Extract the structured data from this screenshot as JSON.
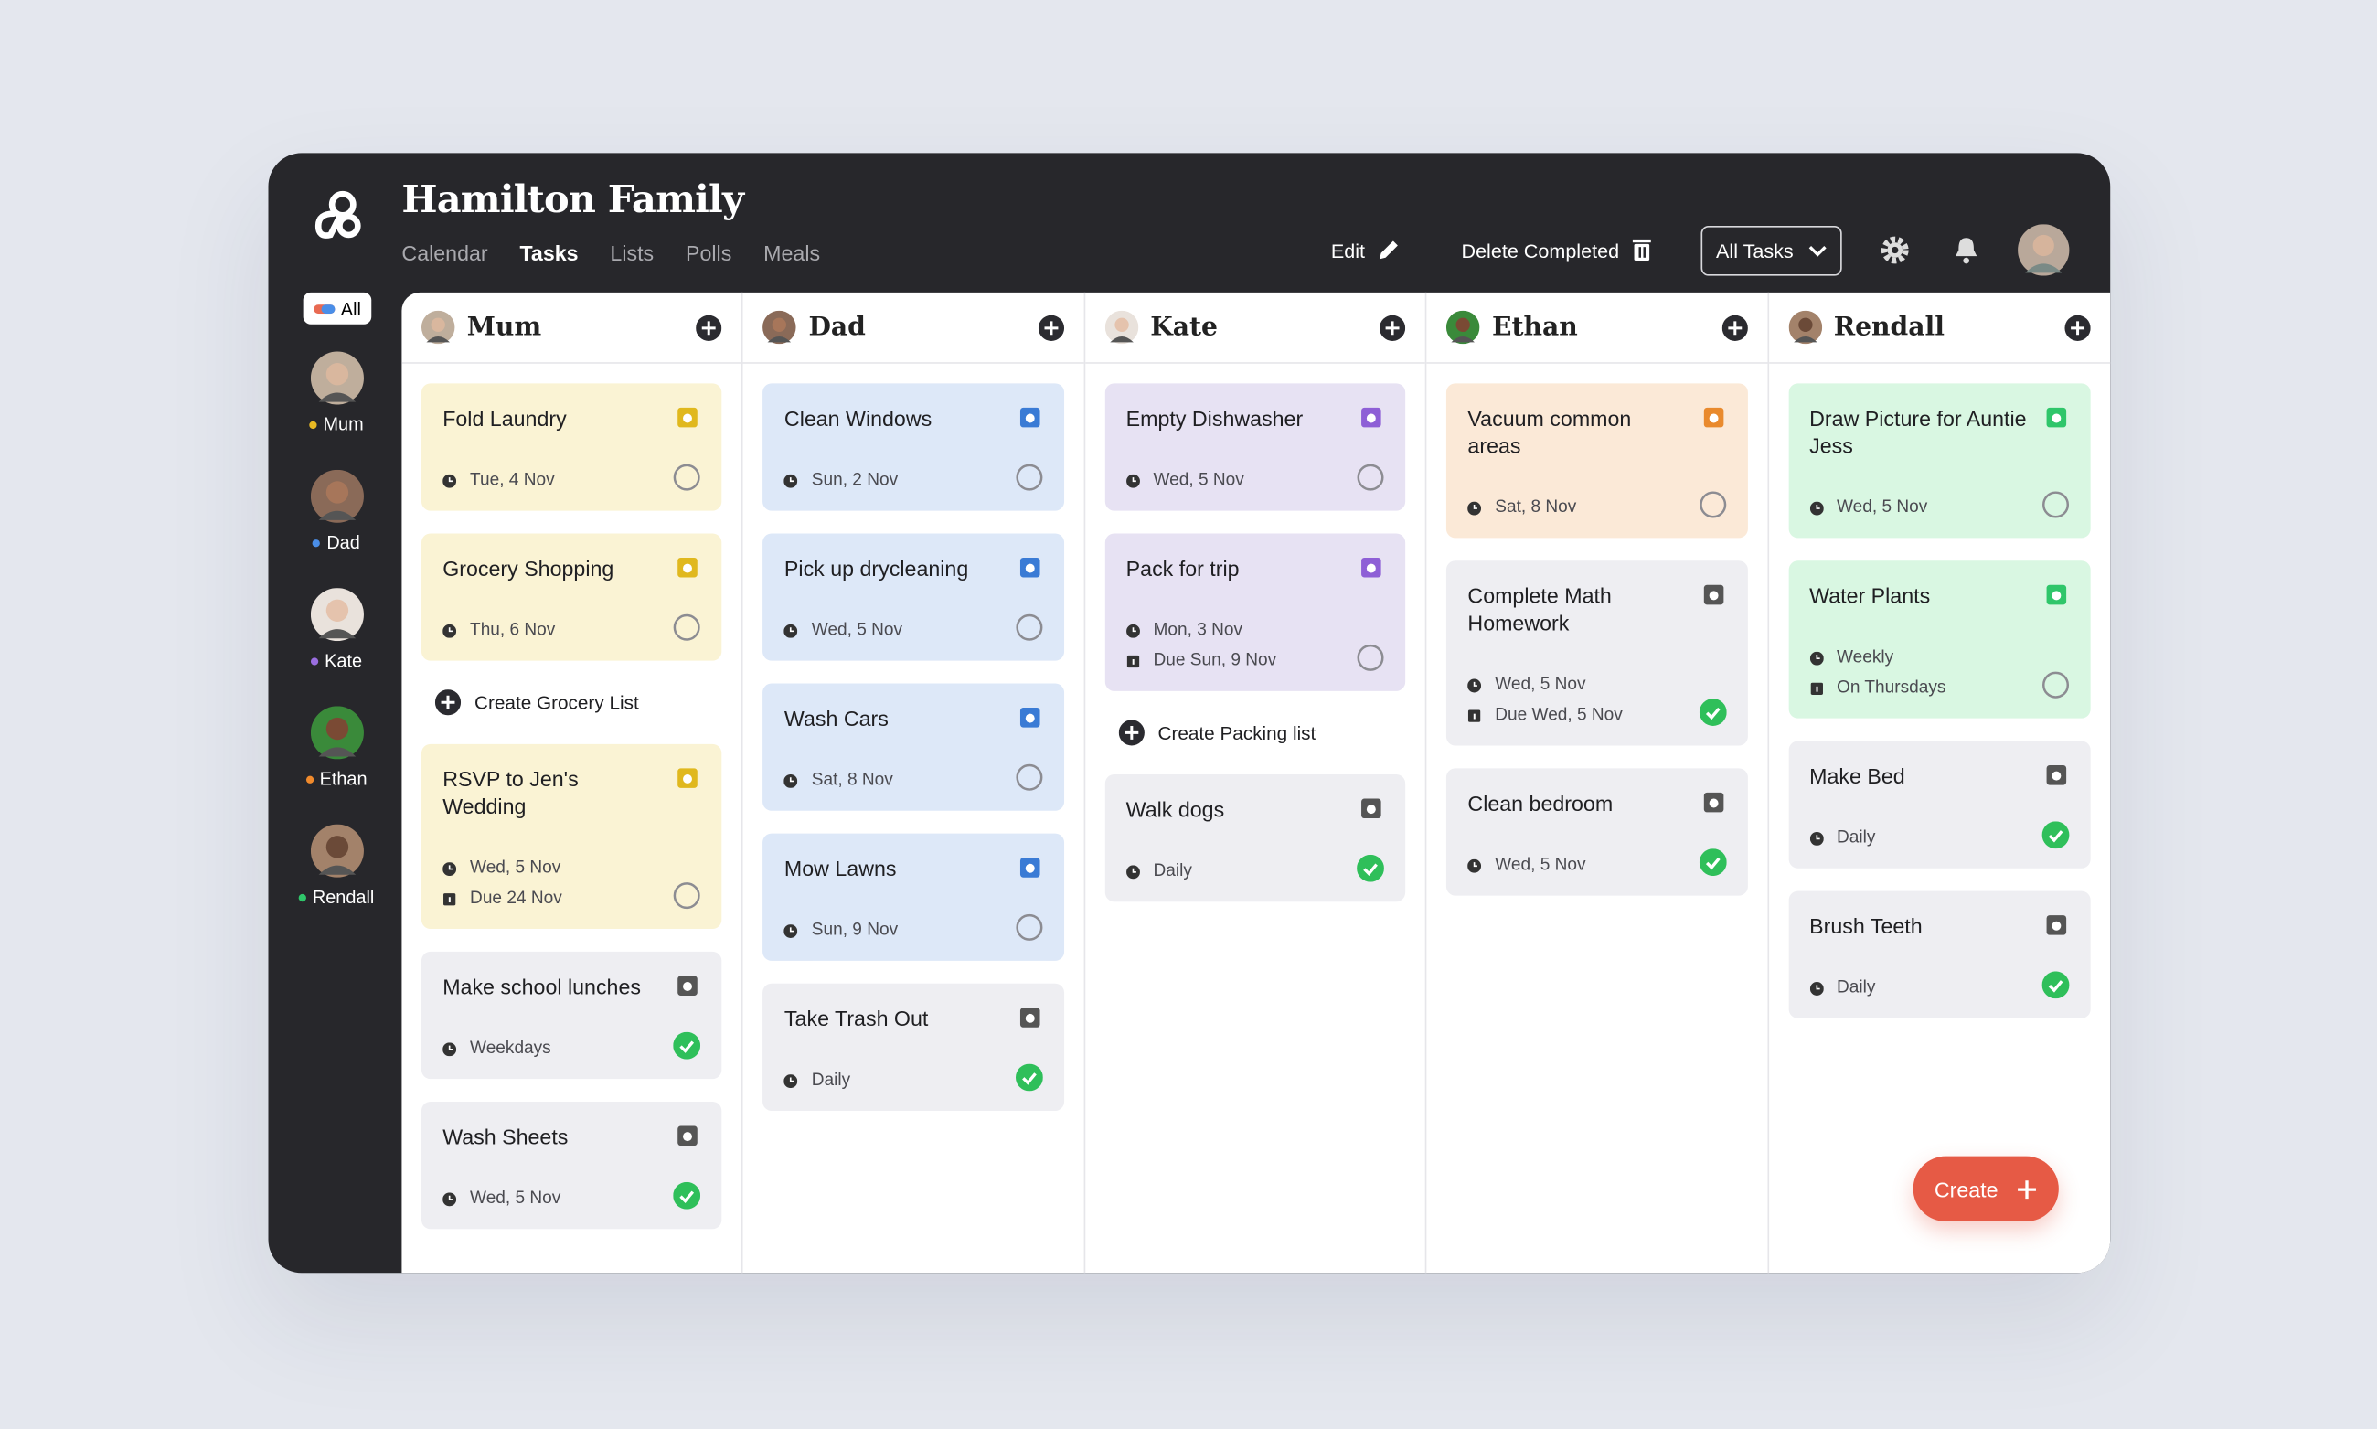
{
  "header": {
    "title": "Hamilton Family",
    "nav": [
      "Calendar",
      "Tasks",
      "Lists",
      "Polls",
      "Meals"
    ],
    "edit": "Edit",
    "delete_completed": "Delete Completed",
    "filter": "All Tasks"
  },
  "sidebar": {
    "all": "All",
    "members": [
      "Mum",
      "Dad",
      "Kate",
      "Ethan",
      "Rendall"
    ]
  },
  "columns": [
    {
      "name": "Mum",
      "items": [
        {
          "title": "Fold Laundry",
          "lines": [
            "Tue, 4 Nov"
          ],
          "done": false
        },
        {
          "title": "Grocery Shopping",
          "lines": [
            "Thu, 6 Nov"
          ],
          "done": false
        },
        {
          "action": "Create Grocery List"
        },
        {
          "title": "RSVP to Jen's Wedding",
          "lines": [
            "Wed, 5 Nov",
            "Due 24 Nov"
          ],
          "done": false
        },
        {
          "title": "Make school lunches",
          "lines": [
            "Weekdays"
          ],
          "done": true
        },
        {
          "title": "Wash Sheets",
          "lines": [
            "Wed, 5 Nov"
          ],
          "done": true
        }
      ]
    },
    {
      "name": "Dad",
      "items": [
        {
          "title": "Clean Windows",
          "lines": [
            "Sun, 2 Nov"
          ],
          "done": false
        },
        {
          "title": "Pick up drycleaning",
          "lines": [
            "Wed, 5 Nov"
          ],
          "done": false
        },
        {
          "title": "Wash Cars",
          "lines": [
            "Sat, 8 Nov"
          ],
          "done": false
        },
        {
          "title": "Mow Lawns",
          "lines": [
            "Sun, 9 Nov"
          ],
          "done": false
        },
        {
          "title": "Take Trash Out",
          "lines": [
            "Daily"
          ],
          "done": true
        }
      ]
    },
    {
      "name": "Kate",
      "items": [
        {
          "title": "Empty Dishwasher",
          "lines": [
            "Wed, 5 Nov"
          ],
          "done": false
        },
        {
          "title": "Pack for trip",
          "lines": [
            "Mon, 3 Nov",
            "Due Sun, 9 Nov"
          ],
          "done": false
        },
        {
          "action": "Create Packing list"
        },
        {
          "title": "Walk dogs",
          "lines": [
            "Daily"
          ],
          "done": true
        }
      ]
    },
    {
      "name": "Ethan",
      "items": [
        {
          "title": "Vacuum common areas",
          "lines": [
            "Sat, 8 Nov"
          ],
          "done": false
        },
        {
          "title": "Complete Math Homework",
          "lines": [
            "Wed, 5 Nov",
            "Due Wed, 5 Nov"
          ],
          "done": true
        },
        {
          "title": "Clean bedroom",
          "lines": [
            "Wed, 5 Nov"
          ],
          "done": true
        }
      ]
    },
    {
      "name": "Rendall",
      "items": [
        {
          "title": "Draw Picture for Auntie Jess",
          "lines": [
            "Wed, 5 Nov"
          ],
          "done": false
        },
        {
          "title": "Water Plants",
          "lines": [
            "Weekly",
            "On Thursdays"
          ],
          "done": false
        },
        {
          "title": "Make Bed",
          "lines": [
            "Daily"
          ],
          "done": true
        },
        {
          "title": "Brush Teeth",
          "lines": [
            "Daily"
          ],
          "done": true
        }
      ]
    }
  ],
  "create_button": "Create"
}
